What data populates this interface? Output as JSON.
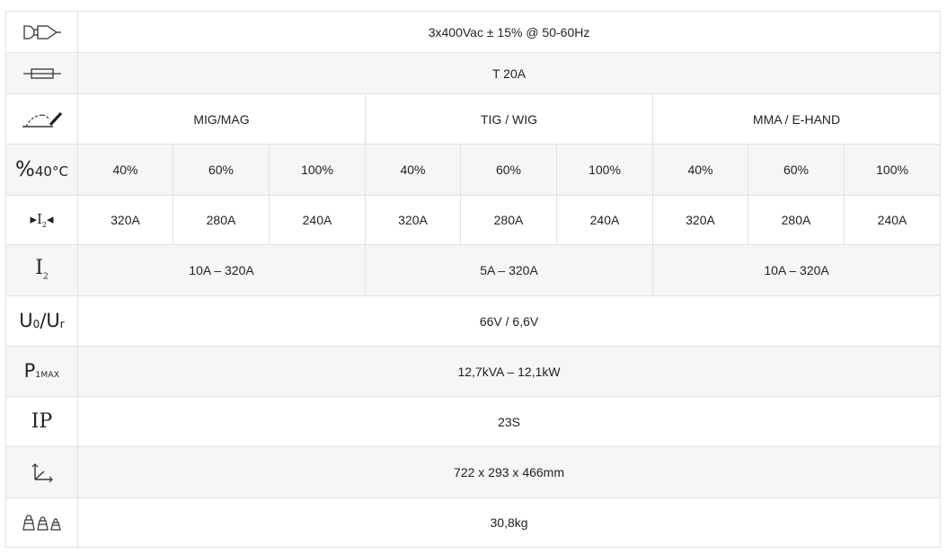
{
  "rows": {
    "power_supply": {
      "icon": "plug-icon",
      "value": "3x400Vac ± 15% @ 50-60Hz"
    },
    "fuse": {
      "icon": "fuse-icon",
      "value": "T 20A"
    },
    "process": {
      "icon": "welding-torch-icon",
      "mig": "MIG/MAG",
      "tig": "TIG / WIG",
      "mma": "MMA / E-HAND"
    },
    "duty_cycle": {
      "symbol_main": "%",
      "symbol_sub": "40°C",
      "values": [
        "40%",
        "60%",
        "100%",
        "40%",
        "60%",
        "100%",
        "40%",
        "60%",
        "100%"
      ]
    },
    "welding_current": {
      "icon": "current-arrow-icon",
      "symbol_main": "I",
      "symbol_sub": "2",
      "values": [
        "320A",
        "280A",
        "240A",
        "320A",
        "280A",
        "240A",
        "320A",
        "280A",
        "240A"
      ]
    },
    "current_range": {
      "symbol_main": "I",
      "symbol_sub": "2",
      "mig": "10A – 320A",
      "tig": "5A – 320A",
      "mma": "10A – 320A"
    },
    "voltage": {
      "symbol_u": "U",
      "symbol_sub0": "0",
      "symbol_slash": "/U",
      "symbol_subr": "r",
      "value": "66V / 6,6V"
    },
    "power": {
      "symbol_main": "P",
      "symbol_sub": "1MAX",
      "value": "12,7kVA – 12,1kW"
    },
    "protection": {
      "symbol": "IP",
      "value": "23S"
    },
    "dimensions": {
      "icon": "dimensions-axes-icon",
      "value": "722 x 293 x 466mm"
    },
    "weight": {
      "icon": "weights-icon",
      "value": "30,8kg"
    }
  },
  "colors": {
    "border": "#e1e1e1",
    "shade": "#f6f6f6",
    "text": "#222222"
  }
}
